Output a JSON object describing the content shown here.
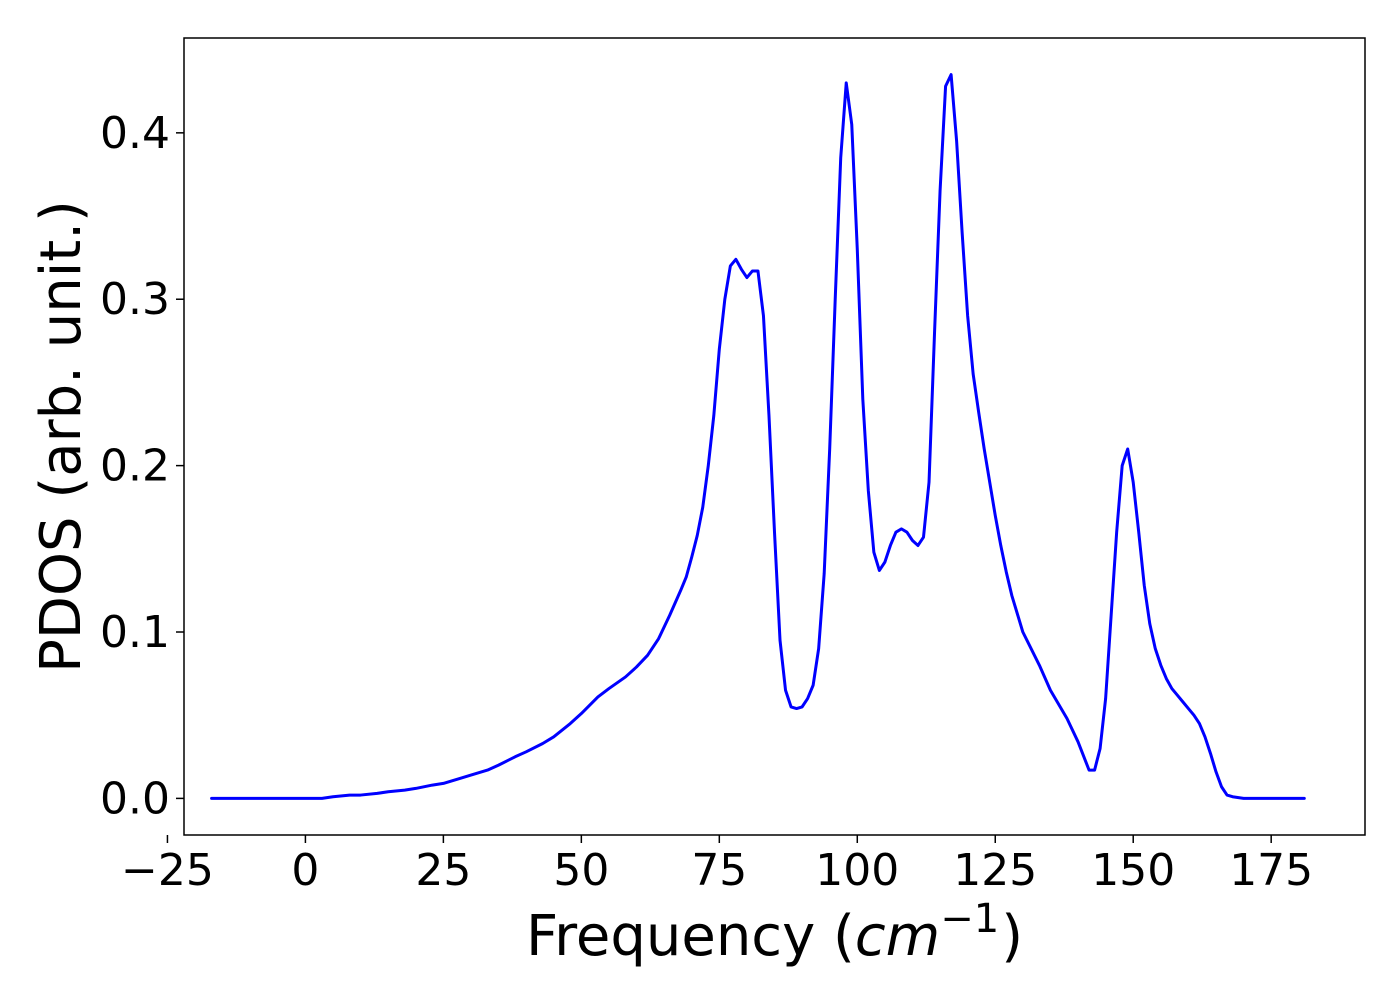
{
  "chart_data": {
    "type": "line",
    "title": "",
    "xlabel": {
      "prefix": "Frequency (",
      "math_base": "cm",
      "math_sup": "−1",
      "suffix": ")"
    },
    "ylabel": "PDOS (arb. unit.)",
    "xlim": [
      -22,
      192
    ],
    "ylim": [
      -0.022,
      0.457
    ],
    "xticks": [
      -25,
      0,
      25,
      50,
      75,
      100,
      125,
      150,
      175
    ],
    "xtick_labels": [
      "−25",
      "0",
      "25",
      "50",
      "75",
      "100",
      "125",
      "150",
      "175"
    ],
    "yticks": [
      0.0,
      0.1,
      0.2,
      0.3,
      0.4
    ],
    "ytick_labels": [
      "0.0",
      "0.1",
      "0.2",
      "0.3",
      "0.4"
    ],
    "grid": false,
    "line_color": "#0000ff",
    "series": [
      {
        "x": [
          -17,
          -10,
          0,
          3,
          5,
          8,
          10,
          13,
          15,
          18,
          20,
          23,
          25,
          28,
          30,
          33,
          35,
          38,
          40,
          43,
          45,
          48,
          50,
          53,
          55,
          58,
          60,
          62,
          64,
          66,
          68,
          69,
          70,
          71,
          72,
          73,
          74,
          75,
          76,
          77,
          78,
          79,
          80,
          81,
          82,
          83,
          84,
          85,
          86,
          87,
          88,
          89,
          90,
          91,
          92,
          93,
          94,
          95,
          96,
          97,
          98,
          99,
          100,
          101,
          102,
          103,
          104,
          105,
          106,
          107,
          108,
          109,
          110,
          111,
          112,
          113,
          114,
          115,
          116,
          117,
          118,
          119,
          120,
          121,
          122,
          123,
          124,
          125,
          126,
          127,
          128,
          130,
          133,
          135,
          138,
          140,
          142,
          143,
          144,
          145,
          146,
          147,
          148,
          149,
          150,
          151,
          152,
          153,
          154,
          155,
          156,
          157,
          158,
          159,
          160,
          161,
          162,
          163,
          164,
          165,
          166,
          167,
          168,
          170,
          175,
          181
        ],
        "y": [
          0,
          0,
          0,
          0,
          0.001,
          0.002,
          0.002,
          0.003,
          0.004,
          0.005,
          0.006,
          0.008,
          0.009,
          0.012,
          0.014,
          0.017,
          0.02,
          0.025,
          0.028,
          0.033,
          0.037,
          0.045,
          0.051,
          0.061,
          0.066,
          0.073,
          0.079,
          0.086,
          0.096,
          0.11,
          0.125,
          0.133,
          0.145,
          0.158,
          0.175,
          0.2,
          0.23,
          0.27,
          0.3,
          0.32,
          0.324,
          0.318,
          0.313,
          0.317,
          0.317,
          0.29,
          0.23,
          0.16,
          0.095,
          0.065,
          0.055,
          0.054,
          0.055,
          0.06,
          0.068,
          0.09,
          0.135,
          0.21,
          0.3,
          0.385,
          0.43,
          0.405,
          0.33,
          0.24,
          0.185,
          0.148,
          0.137,
          0.142,
          0.152,
          0.16,
          0.162,
          0.16,
          0.155,
          0.152,
          0.157,
          0.19,
          0.28,
          0.365,
          0.428,
          0.435,
          0.395,
          0.34,
          0.29,
          0.255,
          0.232,
          0.21,
          0.19,
          0.17,
          0.152,
          0.136,
          0.122,
          0.1,
          0.08,
          0.065,
          0.048,
          0.034,
          0.017,
          0.017,
          0.03,
          0.06,
          0.11,
          0.16,
          0.2,
          0.21,
          0.19,
          0.16,
          0.128,
          0.105,
          0.09,
          0.08,
          0.072,
          0.066,
          0.062,
          0.058,
          0.054,
          0.05,
          0.045,
          0.037,
          0.027,
          0.016,
          0.007,
          0.002,
          0.001,
          0,
          0,
          0
        ]
      }
    ]
  }
}
